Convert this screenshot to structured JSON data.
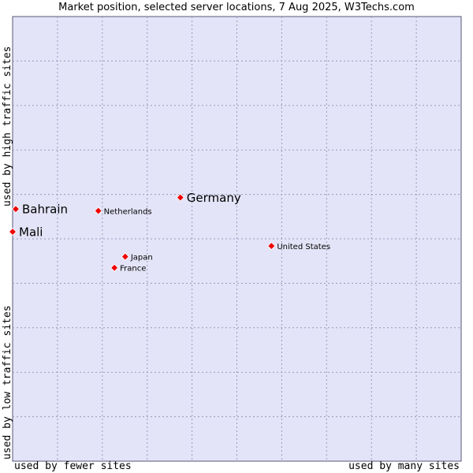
{
  "chart_data": {
    "type": "scatter",
    "title": "Market position, selected server locations, 7 Aug 2025, W3Techs.com",
    "xlabel_low": "used by fewer sites",
    "xlabel_high": "used by many sites",
    "ylabel_low": "used by low traffic sites",
    "ylabel_high": "used by high traffic sites",
    "xlim": [
      0,
      100
    ],
    "ylim": [
      0,
      100
    ],
    "grid": true,
    "background_color": "#e4e4f8",
    "grid_color": "#9999bb",
    "marker_color": "#ee0000",
    "points": [
      {
        "label": "Bahrain",
        "x": 0.7,
        "y": 56.7,
        "size": "large"
      },
      {
        "label": "Mali",
        "x": 0,
        "y": 51.6,
        "size": "large"
      },
      {
        "label": "Germany",
        "x": 37.4,
        "y": 59.3,
        "size": "large"
      },
      {
        "label": "Netherlands",
        "x": 19.1,
        "y": 56.3,
        "size": "small"
      },
      {
        "label": "Japan",
        "x": 25.1,
        "y": 46.0,
        "size": "small"
      },
      {
        "label": "France",
        "x": 22.7,
        "y": 43.5,
        "size": "small"
      },
      {
        "label": "United States",
        "x": 57.7,
        "y": 48.4,
        "size": "small"
      }
    ]
  }
}
